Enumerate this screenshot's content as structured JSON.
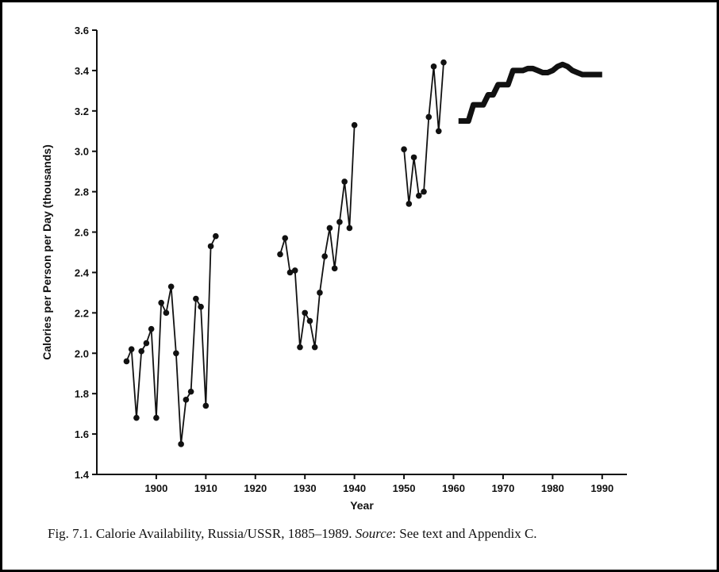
{
  "chart_data": {
    "type": "line",
    "xlabel": "Year",
    "ylabel": "Calories per Person per Day (thousands)",
    "caption": {
      "text": "Fig. 7.1. Calorie Availability, Russia/USSR, 1885–1989.",
      "emphasis": "Source",
      "rest": ": See text and Appendix C."
    },
    "xlim": [
      1888,
      1995
    ],
    "xticks": [
      1900,
      1910,
      1920,
      1930,
      1940,
      1950,
      1960,
      1970,
      1980,
      1990
    ],
    "ylim": [
      1.4,
      3.6
    ],
    "yticks": [
      1.4,
      1.6,
      1.8,
      {
        "value": 2,
        "label": "2.0"
      },
      2.2,
      2.4,
      2.6,
      2.8,
      {
        "value": 3,
        "label": "3.0"
      },
      3.2,
      3.4,
      3.6
    ],
    "x": [
      1894,
      1895,
      1896,
      1897,
      1898,
      1899,
      1900,
      1901,
      1902,
      1903,
      1904,
      1905,
      1906,
      1907,
      1908,
      1909,
      1910,
      1911,
      1912,
      1913,
      1914,
      1915,
      1916,
      1917,
      1918,
      1919,
      1920,
      1921,
      1922,
      1923,
      1924,
      1925,
      1926,
      1927,
      1928,
      1929,
      1930,
      1931,
      1932,
      1933,
      1934,
      1935,
      1936,
      1937,
      1938,
      1939,
      1940,
      1941,
      1942,
      1943,
      1944,
      1945,
      1946,
      1947,
      1948,
      1949,
      1950,
      1951,
      1952,
      1953,
      1954,
      1955,
      1956,
      1957,
      1958,
      1959,
      1960,
      1961,
      1962,
      1963,
      1964,
      1965,
      1966,
      1967,
      1968,
      1969,
      1970,
      1971,
      1972,
      1973,
      1974,
      1975,
      1976,
      1977,
      1978,
      1979,
      1980,
      1981,
      1982,
      1983,
      1984,
      1985,
      1986,
      1987,
      1988,
      1989,
      1990
    ],
    "series": [
      {
        "color": "#111111",
        "markers": true,
        "line_width": 1.8,
        "values": [
          1.96,
          2.02,
          1.68,
          2.01,
          2.05,
          2.12,
          1.68,
          2.25,
          2.2,
          2.33,
          2.0,
          1.55,
          1.77,
          1.81,
          2.27,
          2.23,
          1.74,
          2.53,
          2.58,
          null,
          null,
          null,
          null,
          null,
          null,
          null,
          null,
          null,
          null,
          null,
          null,
          2.49,
          2.57,
          2.4,
          2.41,
          2.03,
          2.2,
          2.16,
          2.03,
          2.3,
          2.48,
          2.62,
          2.42,
          2.65,
          2.85,
          2.62,
          3.13,
          null,
          null,
          null,
          null,
          null,
          null,
          null,
          null,
          null,
          3.01,
          2.74,
          2.97,
          2.78,
          2.8,
          3.17,
          3.42,
          3.1,
          3.44,
          null,
          null,
          null,
          null,
          null,
          null,
          null,
          null,
          null,
          null,
          null,
          null,
          null,
          null,
          null,
          null,
          null,
          null,
          null,
          null,
          null,
          null,
          null,
          null,
          null,
          null,
          null,
          null,
          null,
          null,
          null,
          null
        ]
      },
      {
        "color": "#111111",
        "markers": false,
        "line_width": 7,
        "values": [
          null,
          null,
          null,
          null,
          null,
          null,
          null,
          null,
          null,
          null,
          null,
          null,
          null,
          null,
          null,
          null,
          null,
          null,
          null,
          null,
          null,
          null,
          null,
          null,
          null,
          null,
          null,
          null,
          null,
          null,
          null,
          null,
          null,
          null,
          null,
          null,
          null,
          null,
          null,
          null,
          null,
          null,
          null,
          null,
          null,
          null,
          null,
          null,
          null,
          null,
          null,
          null,
          null,
          null,
          null,
          null,
          null,
          null,
          null,
          null,
          null,
          null,
          null,
          null,
          null,
          null,
          null,
          3.15,
          3.15,
          3.15,
          3.23,
          3.23,
          3.23,
          3.28,
          3.28,
          3.33,
          3.33,
          3.33,
          3.4,
          3.4,
          3.4,
          3.41,
          3.41,
          3.4,
          3.39,
          3.39,
          3.4,
          3.42,
          3.43,
          3.42,
          3.4,
          3.39,
          3.38,
          3.38,
          3.38,
          3.38,
          3.38
        ]
      }
    ]
  }
}
